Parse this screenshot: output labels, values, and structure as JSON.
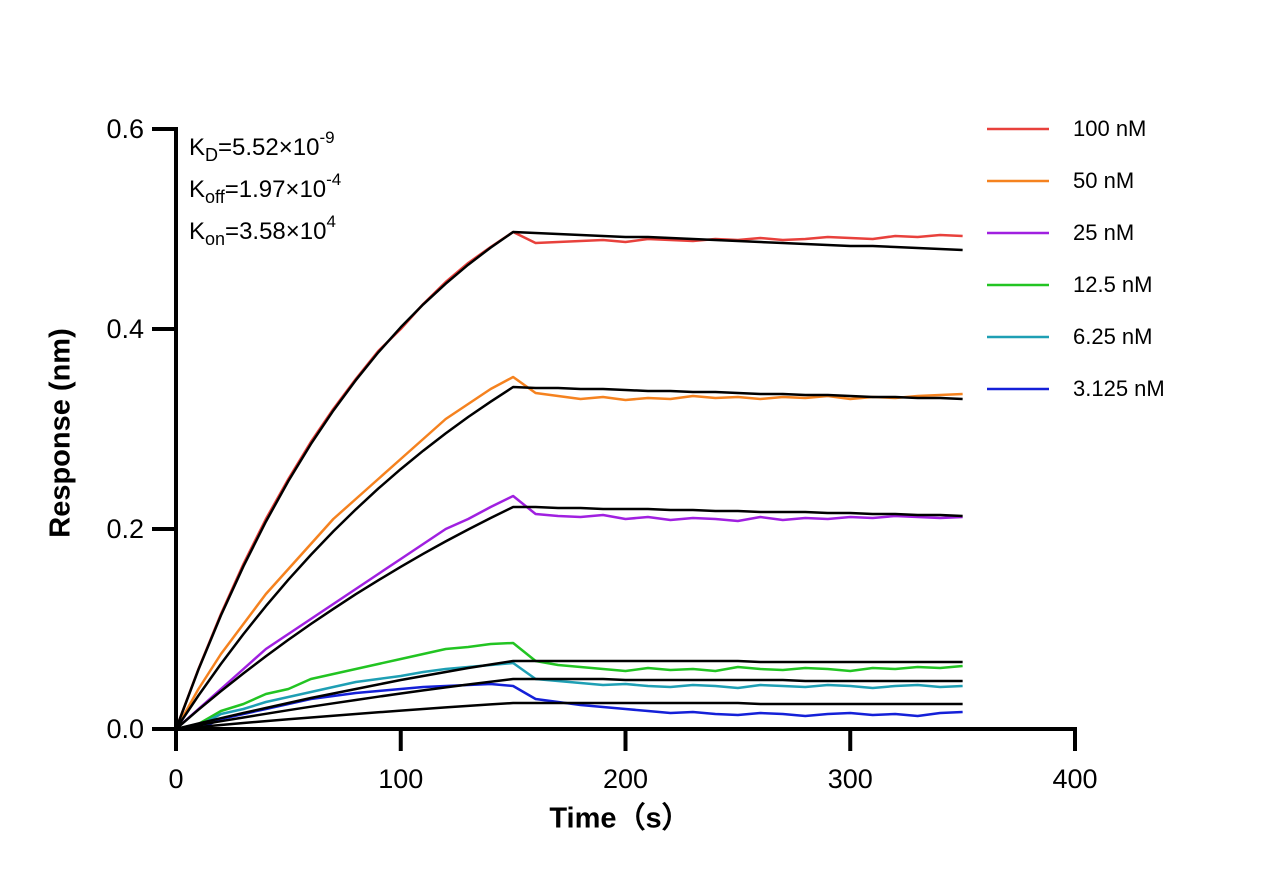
{
  "chart_data": {
    "type": "line",
    "x_label": "Time（s）",
    "y_label": "Response (nm)",
    "xlim": [
      0,
      400
    ],
    "xticks": [
      0,
      100,
      200,
      300,
      400
    ],
    "ylim": [
      0,
      0.6
    ],
    "yticks": [
      {
        "value": 0,
        "label": "0.0"
      },
      0.2,
      0.4,
      0.6
    ],
    "legend": "upper right",
    "annotations": [
      {
        "symbol": "K",
        "subscript": "D",
        "text": "=5.52×10",
        "exponent": "-9"
      },
      {
        "symbol": "K",
        "subscript": "off",
        "text": "=1.97×10",
        "exponent": "-4"
      },
      {
        "symbol": "K",
        "subscript": "on",
        "text": "=3.58×10",
        "exponent": "4"
      }
    ],
    "x": [
      0,
      10,
      20,
      30,
      40,
      50,
      60,
      70,
      80,
      90,
      100,
      110,
      120,
      130,
      140,
      150,
      160,
      170,
      180,
      190,
      200,
      210,
      220,
      230,
      240,
      250,
      260,
      270,
      280,
      290,
      300,
      310,
      320,
      330,
      340,
      350
    ],
    "series": [
      {
        "name": "100 nM",
        "color": "#e8413c",
        "values": [
          0,
          0.06,
          0.115,
          0.165,
          0.21,
          0.25,
          0.287,
          0.32,
          0.35,
          0.378,
          0.4,
          0.425,
          0.447,
          0.466,
          0.482,
          0.497,
          0.486,
          0.487,
          0.488,
          0.489,
          0.487,
          0.49,
          0.489,
          0.488,
          0.49,
          0.489,
          0.491,
          0.489,
          0.49,
          0.492,
          0.491,
          0.49,
          0.493,
          0.492,
          0.494,
          0.493
        ]
      },
      {
        "name": "50 nM",
        "color": "#f5821f",
        "values": [
          0,
          0.04,
          0.075,
          0.105,
          0.135,
          0.16,
          0.185,
          0.21,
          0.23,
          0.25,
          0.27,
          0.29,
          0.31,
          0.325,
          0.34,
          0.352,
          0.336,
          0.333,
          0.33,
          0.332,
          0.329,
          0.331,
          0.33,
          0.333,
          0.331,
          0.332,
          0.33,
          0.332,
          0.331,
          0.333,
          0.33,
          0.332,
          0.331,
          0.333,
          0.334,
          0.335
        ]
      },
      {
        "name": "25 nM",
        "color": "#a020e0",
        "values": [
          0,
          0.02,
          0.04,
          0.06,
          0.08,
          0.095,
          0.11,
          0.125,
          0.14,
          0.155,
          0.17,
          0.185,
          0.2,
          0.21,
          0.222,
          0.233,
          0.215,
          0.213,
          0.212,
          0.214,
          0.21,
          0.212,
          0.209,
          0.211,
          0.21,
          0.208,
          0.212,
          0.209,
          0.211,
          0.21,
          0.212,
          0.211,
          0.213,
          0.212,
          0.211,
          0.212
        ]
      },
      {
        "name": "12.5 nM",
        "color": "#22c422",
        "values": [
          0,
          0.005,
          0.018,
          0.025,
          0.035,
          0.04,
          0.05,
          0.055,
          0.06,
          0.065,
          0.07,
          0.075,
          0.08,
          0.082,
          0.085,
          0.086,
          0.068,
          0.064,
          0.062,
          0.06,
          0.058,
          0.061,
          0.059,
          0.06,
          0.058,
          0.062,
          0.06,
          0.059,
          0.061,
          0.06,
          0.058,
          0.061,
          0.06,
          0.062,
          0.061,
          0.063
        ]
      },
      {
        "name": "6.25 nM",
        "color": "#1e9fb4",
        "values": [
          0,
          0.003,
          0.015,
          0.02,
          0.027,
          0.032,
          0.037,
          0.042,
          0.047,
          0.05,
          0.053,
          0.057,
          0.06,
          0.062,
          0.064,
          0.066,
          0.05,
          0.048,
          0.046,
          0.044,
          0.045,
          0.043,
          0.042,
          0.044,
          0.043,
          0.041,
          0.044,
          0.043,
          0.042,
          0.044,
          0.043,
          0.041,
          0.043,
          0.044,
          0.042,
          0.043
        ]
      },
      {
        "name": "3.125 nM",
        "color": "#1420d8",
        "values": [
          0,
          0,
          0.01,
          0.015,
          0.02,
          0.025,
          0.03,
          0.033,
          0.036,
          0.038,
          0.04,
          0.042,
          0.043,
          0.044,
          0.045,
          0.043,
          0.03,
          0.027,
          0.024,
          0.022,
          0.02,
          0.018,
          0.016,
          0.017,
          0.015,
          0.014,
          0.016,
          0.015,
          0.013,
          0.015,
          0.016,
          0.014,
          0.015,
          0.013,
          0.016,
          0.017
        ]
      }
    ],
    "fits": [
      {
        "color": "#000000",
        "values": [
          0,
          0.0595,
          0.1136,
          0.1627,
          0.2074,
          0.248,
          0.2849,
          0.3184,
          0.3488,
          0.3766,
          0.4017,
          0.4246,
          0.4453,
          0.4643,
          0.4814,
          0.497,
          0.496,
          0.495,
          0.494,
          0.493,
          0.492,
          0.492,
          0.491,
          0.49,
          0.489,
          0.488,
          0.487,
          0.486,
          0.485,
          0.484,
          0.483,
          0.483,
          0.482,
          0.481,
          0.48,
          0.479
        ]
      },
      {
        "color": "#000000",
        "values": [
          0,
          0.0335,
          0.0651,
          0.0949,
          0.1229,
          0.1493,
          0.1741,
          0.1976,
          0.2196,
          0.2404,
          0.2599,
          0.2783,
          0.2956,
          0.312,
          0.3273,
          0.342,
          0.341,
          0.341,
          0.34,
          0.34,
          0.339,
          0.338,
          0.338,
          0.337,
          0.337,
          0.336,
          0.335,
          0.335,
          0.334,
          0.334,
          0.333,
          0.332,
          0.332,
          0.331,
          0.331,
          0.33
        ]
      },
      {
        "color": "#000000",
        "values": [
          0,
          0.0193,
          0.0378,
          0.0556,
          0.0728,
          0.0892,
          0.105,
          0.1201,
          0.1348,
          0.1487,
          0.1622,
          0.1752,
          0.1876,
          0.1995,
          0.211,
          0.222,
          0.222,
          0.221,
          0.221,
          0.22,
          0.22,
          0.22,
          0.219,
          0.219,
          0.218,
          0.218,
          0.217,
          0.217,
          0.217,
          0.216,
          0.216,
          0.215,
          0.215,
          0.214,
          0.214,
          0.213
        ]
      },
      {
        "color": "#000000",
        "values": [
          0,
          0.0055,
          0.0108,
          0.016,
          0.021,
          0.026,
          0.031,
          0.0355,
          0.04,
          0.0445,
          0.049,
          0.053,
          0.057,
          0.061,
          0.0645,
          0.068,
          0.068,
          0.068,
          0.068,
          0.068,
          0.068,
          0.068,
          0.068,
          0.068,
          0.068,
          0.068,
          0.067,
          0.067,
          0.067,
          0.067,
          0.067,
          0.067,
          0.067,
          0.067,
          0.067,
          0.067
        ]
      },
      {
        "color": "#000000",
        "values": [
          0,
          0.004,
          0.0078,
          0.0115,
          0.0152,
          0.0188,
          0.0223,
          0.0257,
          0.029,
          0.0323,
          0.0355,
          0.0386,
          0.0416,
          0.0445,
          0.0473,
          0.05,
          0.05,
          0.05,
          0.05,
          0.05,
          0.049,
          0.049,
          0.049,
          0.049,
          0.049,
          0.049,
          0.049,
          0.049,
          0.048,
          0.048,
          0.048,
          0.048,
          0.048,
          0.048,
          0.048,
          0.048
        ]
      },
      {
        "color": "#000000",
        "values": [
          0,
          0.002,
          0.004,
          0.006,
          0.0079,
          0.0097,
          0.0115,
          0.0133,
          0.015,
          0.0167,
          0.0184,
          0.02,
          0.0216,
          0.0231,
          0.0246,
          0.026,
          0.026,
          0.026,
          0.026,
          0.026,
          0.026,
          0.026,
          0.026,
          0.026,
          0.026,
          0.026,
          0.025,
          0.025,
          0.025,
          0.025,
          0.025,
          0.025,
          0.025,
          0.025,
          0.025,
          0.025
        ]
      }
    ]
  }
}
